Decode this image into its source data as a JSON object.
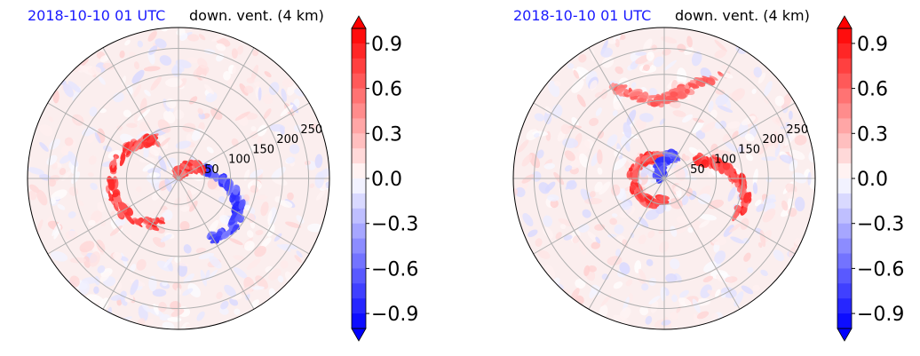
{
  "panels": [
    {
      "id": "left",
      "time_label": "2018-10-10 01 UTC",
      "variable_label": "down. vent. (4 km)",
      "ring_labels": [
        "50",
        "100",
        "150",
        "200",
        "250"
      ]
    },
    {
      "id": "right",
      "time_label": "2018-10-10 01 UTC",
      "variable_label": "down. vent. (4 km)",
      "ring_labels": [
        "50",
        "100",
        "150",
        "200",
        "250"
      ]
    }
  ],
  "colorbar": {
    "ticks": [
      "0.9",
      "0.6",
      "0.3",
      "0.0",
      "−0.3",
      "−0.6",
      "−0.9"
    ],
    "range": [
      -1.0,
      1.0
    ],
    "extend": "both",
    "colormap": "bwr",
    "colors": {
      "max": "#ff0000",
      "mid": "#ffffff",
      "min": "#0000ff"
    }
  },
  "chart_data": [
    {
      "type": "heatmap",
      "projection": "polar",
      "title": "2018-10-10 01 UTC  down. vent. (4 km)",
      "radial_ticks": [
        50,
        100,
        150,
        200,
        250
      ],
      "radial_max": 290,
      "azimuth_grid_deg": 30,
      "grid": true,
      "color_range": [
        -1.0,
        1.0
      ],
      "colorbar_ticks": [
        0.9,
        0.6,
        0.3,
        0.0,
        -0.3,
        -0.6,
        -0.9
      ],
      "features": [
        {
          "kind": "positive spiral band",
          "value": 0.9,
          "azimuth_deg": [
            120,
            250
          ],
          "radius": [
            40,
            130
          ]
        },
        {
          "kind": "negative rainband",
          "value": -0.9,
          "azimuth_deg": [
            300,
            20
          ],
          "radius": [
            40,
            140
          ]
        },
        {
          "kind": "positive core",
          "value": 0.9,
          "azimuth_deg": [
            20,
            90
          ],
          "radius": [
            10,
            50
          ]
        }
      ]
    },
    {
      "type": "heatmap",
      "projection": "polar",
      "title": "2018-10-10 01 UTC  down. vent. (4 km)",
      "radial_ticks": [
        50,
        100,
        150,
        200,
        250
      ],
      "radial_max": 290,
      "azimuth_grid_deg": 30,
      "grid": true,
      "color_range": [
        -1.0,
        1.0
      ],
      "colorbar_ticks": [
        0.9,
        0.6,
        0.3,
        0.0,
        -0.3,
        -0.6,
        -0.9
      ],
      "features": [
        {
          "kind": "positive inner core",
          "value": 0.9,
          "azimuth_deg": [
            90,
            270
          ],
          "radius": [
            10,
            60
          ]
        },
        {
          "kind": "positive eastern band",
          "value": 0.9,
          "azimuth_deg": [
            330,
            30
          ],
          "radius": [
            60,
            160
          ]
        },
        {
          "kind": "negative inner arc",
          "value": -0.9,
          "azimuth_deg": [
            60,
            160
          ],
          "radius": [
            10,
            50
          ]
        },
        {
          "kind": "positive northern band",
          "value": 0.7,
          "azimuth_deg": [
            60,
            120
          ],
          "radius": [
            150,
            290
          ]
        }
      ]
    }
  ]
}
